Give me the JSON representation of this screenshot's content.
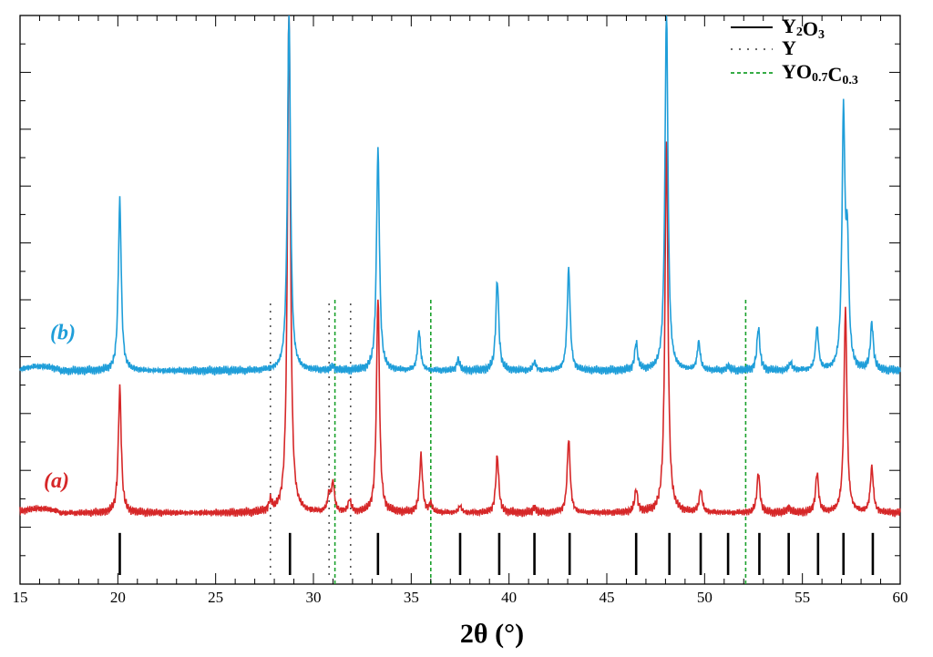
{
  "chart_data": {
    "type": "line",
    "xlabel": "2θ (°)",
    "ylabel": "",
    "xlim": [
      15,
      60
    ],
    "xticks": [
      15,
      20,
      25,
      30,
      35,
      40,
      45,
      50,
      55,
      60
    ],
    "ylim": [
      0,
      1
    ],
    "yticks_shown_as_marks_only": true,
    "colors": {
      "a": "#d62728",
      "b": "#1f9ed9",
      "Y2O3": "#000000",
      "Y": "#555555",
      "YO0.7C0.3": "#1aa12c"
    },
    "series": [
      {
        "name": "(a)",
        "label": "(a)",
        "color": "#d62728",
        "baseline": 0.125,
        "peaks": [
          {
            "x": 20.1,
            "h": 0.22
          },
          {
            "x": 27.8,
            "h": 0.018
          },
          {
            "x": 28.75,
            "h": 0.9
          },
          {
            "x": 30.8,
            "h": 0.03
          },
          {
            "x": 31.0,
            "h": 0.05
          },
          {
            "x": 31.85,
            "h": 0.022
          },
          {
            "x": 33.3,
            "h": 0.38
          },
          {
            "x": 35.5,
            "h": 0.1
          },
          {
            "x": 36.0,
            "h": 0.015
          },
          {
            "x": 37.5,
            "h": 0.012
          },
          {
            "x": 39.4,
            "h": 0.1
          },
          {
            "x": 41.3,
            "h": 0.01
          },
          {
            "x": 43.05,
            "h": 0.13
          },
          {
            "x": 46.5,
            "h": 0.04
          },
          {
            "x": 48.05,
            "h": 0.66
          },
          {
            "x": 49.8,
            "h": 0.04
          },
          {
            "x": 52.75,
            "h": 0.07
          },
          {
            "x": 54.3,
            "h": 0.01
          },
          {
            "x": 55.75,
            "h": 0.07
          },
          {
            "x": 57.2,
            "h": 0.36
          },
          {
            "x": 58.55,
            "h": 0.08
          }
        ]
      },
      {
        "name": "(b)",
        "label": "(b)",
        "color": "#1f9ed9",
        "baseline": 0.375,
        "peaks": [
          {
            "x": 20.1,
            "h": 0.3
          },
          {
            "x": 28.75,
            "h": 0.64
          },
          {
            "x": 31.0,
            "h": 0.008
          },
          {
            "x": 33.3,
            "h": 0.39
          },
          {
            "x": 35.4,
            "h": 0.07
          },
          {
            "x": 37.4,
            "h": 0.02
          },
          {
            "x": 39.4,
            "h": 0.16
          },
          {
            "x": 41.3,
            "h": 0.015
          },
          {
            "x": 43.05,
            "h": 0.18
          },
          {
            "x": 46.5,
            "h": 0.048
          },
          {
            "x": 48.05,
            "h": 0.64
          },
          {
            "x": 49.7,
            "h": 0.05
          },
          {
            "x": 51.2,
            "h": 0.008
          },
          {
            "x": 52.75,
            "h": 0.076
          },
          {
            "x": 54.4,
            "h": 0.014
          },
          {
            "x": 55.75,
            "h": 0.075
          },
          {
            "x": 57.1,
            "h": 0.44
          },
          {
            "x": 57.3,
            "h": 0.2
          },
          {
            "x": 58.55,
            "h": 0.083
          }
        ]
      }
    ],
    "reference_lines": [
      {
        "name": "Y2O3",
        "style": "solid",
        "color": "#000000",
        "positions": [
          20.1,
          28.8,
          33.3,
          37.5,
          39.5,
          41.3,
          43.1,
          46.5,
          48.2,
          49.8,
          51.2,
          52.8,
          54.3,
          55.8,
          57.1,
          58.6
        ]
      },
      {
        "name": "Y",
        "style": "dotted",
        "color": "#555555",
        "positions": [
          27.8,
          30.8,
          31.9
        ]
      },
      {
        "name": "YO0.7C0.3",
        "style": "dashed",
        "color": "#1aa12c",
        "positions": [
          31.1,
          36.0,
          52.1
        ]
      }
    ],
    "legend": {
      "placement": "top-right",
      "entries": [
        {
          "main": "Y",
          "sub": "2",
          "main2": "O",
          "sub2": "3",
          "style": "solid",
          "color": "#000000"
        },
        {
          "main": "Y",
          "sub": "",
          "main2": "",
          "sub2": "",
          "style": "dotted",
          "color": "#555555"
        },
        {
          "main": "YO",
          "sub": "0.7",
          "main2": "C",
          "sub2": "0.3",
          "style": "dashed",
          "color": "#1aa12c"
        }
      ]
    }
  }
}
